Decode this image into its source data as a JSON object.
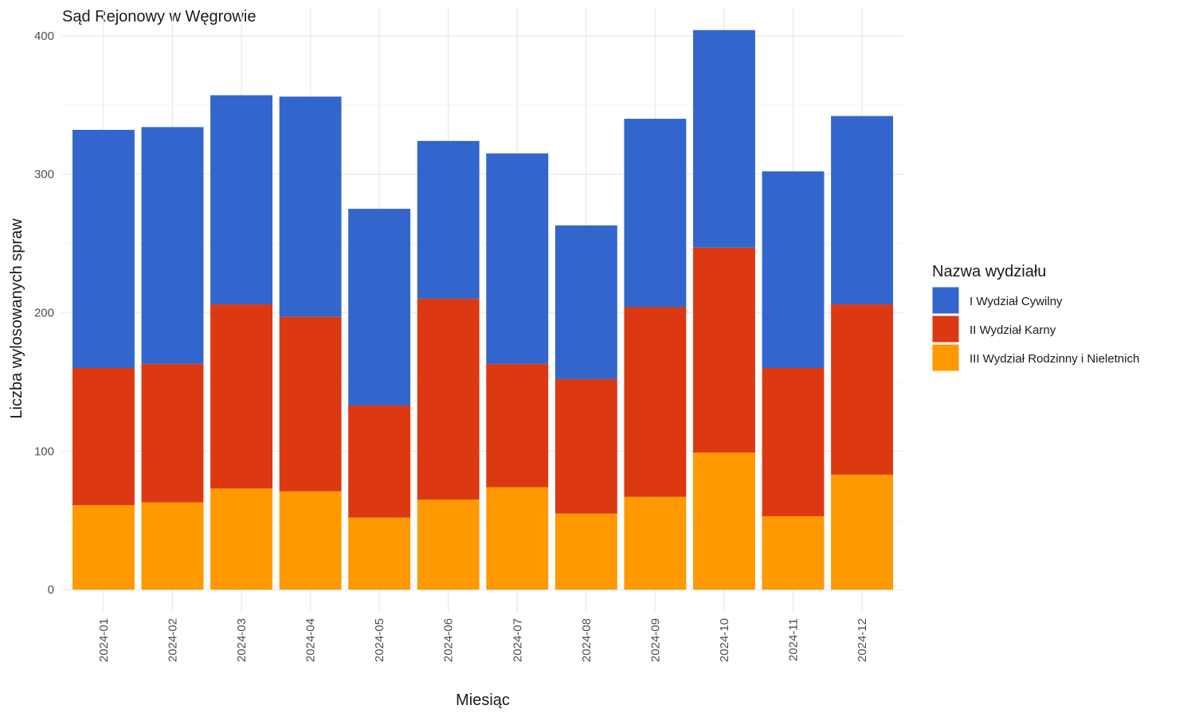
{
  "chart_data": {
    "type": "bar",
    "stacked": true,
    "title": "Sąd Rejonowy w Węgrowie",
    "xlabel": "Miesiąc",
    "ylabel": "Liczba wylosowanych spraw",
    "ylim": [
      -16,
      420
    ],
    "yticks": [
      0,
      100,
      200,
      300,
      400
    ],
    "grid": true,
    "legend_title": "Nazwa wydziału",
    "legend_position": "right",
    "categories": [
      "2024-01",
      "2024-02",
      "2024-03",
      "2024-04",
      "2024-05",
      "2024-06",
      "2024-07",
      "2024-08",
      "2024-09",
      "2024-10",
      "2024-11",
      "2024-12"
    ],
    "series": [
      {
        "name": "III Wydział Rodzinny i Nieletnich",
        "color": "#FF9900",
        "values": [
          61,
          63,
          73,
          71,
          52,
          65,
          74,
          55,
          67,
          99,
          53,
          83
        ]
      },
      {
        "name": "II Wydział Karny",
        "color": "#DC3912",
        "values": [
          99,
          100,
          133,
          126,
          81,
          145,
          89,
          97,
          137,
          148,
          107,
          123
        ]
      },
      {
        "name": "I Wydział Cywilny",
        "color": "#3366CC",
        "values": [
          172,
          171,
          151,
          159,
          142,
          114,
          152,
          111,
          136,
          157,
          142,
          136
        ]
      }
    ],
    "legend_order": [
      "I Wydział Cywilny",
      "II Wydział Karny",
      "III Wydział Rodzinny i Nieletnich"
    ]
  }
}
